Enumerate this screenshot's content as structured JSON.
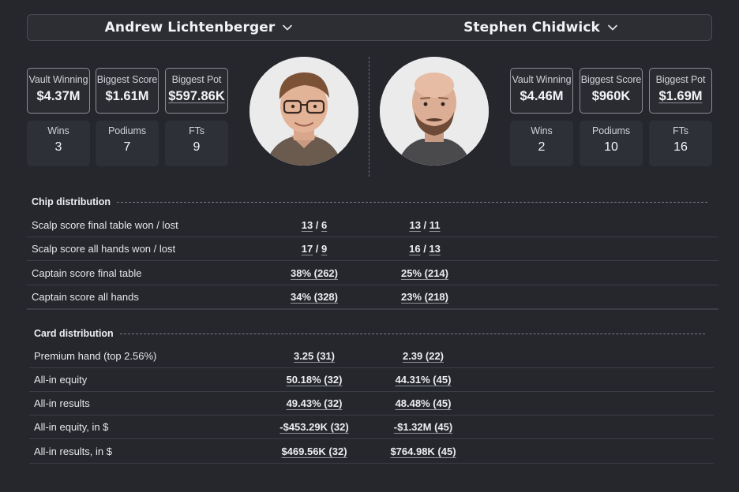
{
  "players": {
    "left": {
      "name": "Andrew Lichtenberger",
      "stats_top": [
        {
          "label": "Vault Winning",
          "value": "$4.37M"
        },
        {
          "label": "Biggest Score",
          "value": "$1.61M"
        },
        {
          "label": "Biggest Pot",
          "value": "$597.86K"
        }
      ],
      "stats_bottom": [
        {
          "label": "Wins",
          "value": "3"
        },
        {
          "label": "Podiums",
          "value": "7"
        },
        {
          "label": "FTs",
          "value": "9"
        }
      ]
    },
    "right": {
      "name": "Stephen Chidwick",
      "stats_top": [
        {
          "label": "Vault Winning",
          "value": "$4.46M"
        },
        {
          "label": "Biggest Score",
          "value": "$960K"
        },
        {
          "label": "Biggest Pot",
          "value": "$1.69M"
        }
      ],
      "stats_bottom": [
        {
          "label": "Wins",
          "value": "2"
        },
        {
          "label": "Podiums",
          "value": "10"
        },
        {
          "label": "FTs",
          "value": "16"
        }
      ]
    }
  },
  "chip": {
    "title": "Chip distribution",
    "rows": [
      {
        "label": "Scalp score final table won / lost",
        "a1": "13",
        "a2": "6",
        "b1": "13",
        "b2": "11"
      },
      {
        "label": "Scalp score all hands won / lost",
        "a1": "17",
        "a2": "9",
        "b1": "16",
        "b2": "13"
      },
      {
        "label": "Captain score final table",
        "a": "38% (262)",
        "b": "25% (214)"
      },
      {
        "label": "Captain score all hands",
        "a": "34% (328)",
        "b": "23% (218)"
      }
    ]
  },
  "card": {
    "title": "Card distribution",
    "rows": [
      {
        "label": "Premium hand (top 2.56%)",
        "a": "3.25 (31)",
        "b": "2.39 (22)"
      },
      {
        "label": "All-in equity",
        "a": "50.18% (32)",
        "b": "44.31% (45)"
      },
      {
        "label": "All-in results",
        "a": "49.43% (32)",
        "b": "48.48% (45)"
      },
      {
        "label": "All-in equity, in $",
        "a": "-$453.29K (32)",
        "b": "-$1.32M (45)"
      },
      {
        "label": "All-in results, in $",
        "a": "$469.56K (32)",
        "b": "$764.98K (45)"
      }
    ]
  },
  "colors": {
    "background": "#25272d",
    "panel": "#2d3036",
    "border": "#8a8d94"
  }
}
